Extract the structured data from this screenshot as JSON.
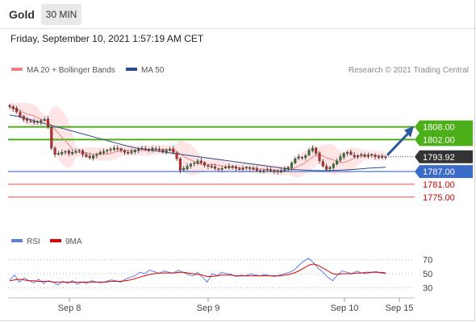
{
  "header": {
    "instrument": "Gold",
    "timeframe": "30 MIN"
  },
  "timestamp": "Friday, September 10, 2021 1:57:19 AM CET",
  "credit": "Research © 2021 Trading Central",
  "colors": {
    "ma20": "#f08080",
    "ma50": "#2a4d8f",
    "band": "#ffe0e0",
    "candle_up": "#2e7d32",
    "candle_down": "#c62828",
    "resistance": "#4caf1a",
    "support": "#3a6bc9",
    "support2": "#e05050",
    "arrow": "#2a5a9a",
    "rsi": "#5b7fe0",
    "rsi_ma": "#e00000",
    "last_price_tag": "#333333"
  },
  "chart_data": [
    {
      "type": "candlestick",
      "title": "",
      "legend": [
        {
          "name": "MA 20 + Bollinger Bands",
          "color": "#f08080"
        },
        {
          "name": "MA 50",
          "color": "#2a4d8f"
        }
      ],
      "price_axis": {
        "min": 1770,
        "max": 1826
      },
      "x_tick_labels": [
        "Sep 8",
        "Sep 9",
        "Sep 10",
        "Sep 15"
      ],
      "last_price": "1793.92",
      "levels": [
        {
          "value": 1808.0,
          "label": "1808.00",
          "kind": "resistance"
        },
        {
          "value": 1802.0,
          "label": "1802.00",
          "kind": "resistance"
        },
        {
          "value": 1787.0,
          "label": "1787.00",
          "kind": "pivot"
        },
        {
          "value": 1781.0,
          "label": "1781.00",
          "kind": "support"
        },
        {
          "value": 1775.0,
          "label": "1775.00",
          "kind": "support"
        }
      ],
      "close_series": [
        1817.5,
        1816.5,
        1815.0,
        1813.0,
        1811.5,
        1811.0,
        1810.5,
        1810.0,
        1810.5,
        1811.0,
        1811.5,
        1808.0,
        1798.0,
        1795.0,
        1795.5,
        1796.0,
        1796.5,
        1795.5,
        1796.0,
        1796.5,
        1797.0,
        1795.0,
        1794.0,
        1793.5,
        1794.5,
        1795.0,
        1796.0,
        1796.5,
        1797.0,
        1797.5,
        1798.0,
        1797.5,
        1797.0,
        1796.0,
        1795.5,
        1796.5,
        1797.0,
        1797.5,
        1798.0,
        1797.5,
        1797.0,
        1798.0,
        1797.5,
        1797.0,
        1796.5,
        1797.0,
        1797.5,
        1796.0,
        1793.0,
        1787.5,
        1788.5,
        1789.5,
        1790.5,
        1791.0,
        1792.0,
        1791.0,
        1790.0,
        1789.5,
        1789.0,
        1788.5,
        1788.0,
        1788.5,
        1789.0,
        1789.5,
        1789.0,
        1788.5,
        1788.0,
        1788.5,
        1789.0,
        1788.5,
        1788.0,
        1787.5,
        1787.5,
        1787.5,
        1788.0,
        1787.5,
        1787.0,
        1787.0,
        1787.5,
        1788.0,
        1789.0,
        1791.0,
        1793.0,
        1794.0,
        1793.5,
        1794.5,
        1797.0,
        1798.0,
        1795.5,
        1792.0,
        1789.5,
        1788.0,
        1789.0,
        1790.5,
        1792.0,
        1794.0,
        1795.5,
        1796.0,
        1795.0,
        1794.0,
        1794.5,
        1795.0,
        1794.0,
        1794.5,
        1795.0,
        1794.0,
        1793.5,
        1794.0,
        1793.92
      ],
      "ma50_series": [
        1813.5,
        1813.0,
        1812.0,
        1811.0,
        1810.0,
        1809.0,
        1808.0,
        1807.0,
        1806.0,
        1805.0,
        1804.0,
        1803.0,
        1802.0,
        1801.0,
        1800.0,
        1799.0,
        1798.2,
        1797.5,
        1797.0,
        1796.5,
        1796.0,
        1795.5,
        1795.0,
        1794.5,
        1794.0,
        1793.5,
        1793.0,
        1792.5,
        1792.0,
        1791.5,
        1791.0,
        1790.5,
        1790.0,
        1789.5,
        1789.0,
        1788.5,
        1788.0,
        1787.8,
        1787.6,
        1787.5,
        1787.4,
        1787.5,
        1787.6,
        1787.8,
        1788.0,
        1788.3,
        1788.6,
        1788.8,
        1789.0
      ]
    },
    {
      "type": "line",
      "title": "",
      "legend": [
        {
          "name": "RSI",
          "color": "#5b7fe0"
        },
        {
          "name": "9MA",
          "color": "#e00000"
        }
      ],
      "y_ticks": [
        70,
        50,
        30
      ],
      "ylim": [
        20,
        80
      ],
      "rsi_series": [
        41,
        48,
        38,
        44,
        40,
        37,
        42,
        36,
        40,
        38,
        34,
        39,
        36,
        40,
        35,
        38,
        36,
        40,
        38,
        37,
        39,
        41,
        40,
        38,
        42,
        45,
        47,
        52,
        50,
        55,
        53,
        50,
        54,
        52,
        51,
        55,
        52,
        49,
        47,
        52,
        45,
        38,
        50,
        47,
        52,
        50,
        49,
        46,
        48,
        47,
        50,
        48,
        47,
        49,
        47,
        46,
        48,
        50,
        52,
        55,
        62,
        68,
        72,
        66,
        58,
        52,
        45,
        40,
        48,
        54,
        52,
        50,
        54,
        51,
        50,
        52,
        53,
        51,
        50
      ],
      "rsi_ma_series": [
        40,
        41,
        42,
        41,
        40,
        40,
        39,
        39,
        39,
        38,
        38,
        38,
        38,
        38,
        38,
        38,
        38,
        38,
        38,
        38,
        38,
        39,
        39,
        39,
        40,
        41,
        43,
        45,
        47,
        49,
        50,
        51,
        51,
        51,
        51,
        52,
        52,
        51,
        50,
        49,
        48,
        46,
        46,
        47,
        48,
        48,
        48,
        47,
        47,
        47,
        47,
        47,
        47,
        47,
        47,
        47,
        47,
        48,
        49,
        51,
        54,
        58,
        62,
        64,
        62,
        58,
        54,
        50,
        49,
        50,
        50,
        50,
        51,
        51,
        52,
        52,
        52,
        52,
        51
      ]
    }
  ]
}
